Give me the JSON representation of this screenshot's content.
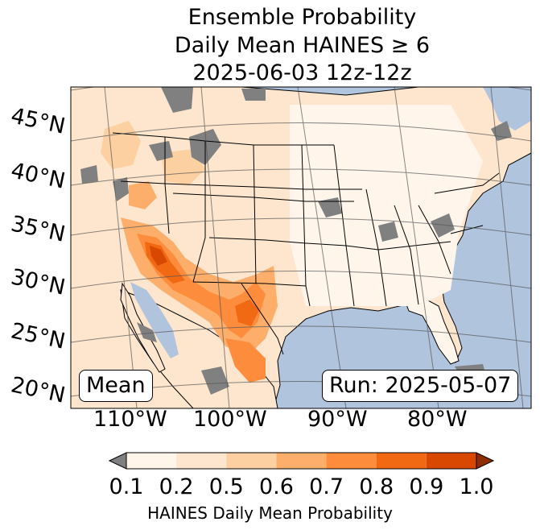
{
  "title": {
    "line1": "Ensemble Probability",
    "line2": "Daily Mean HAINES ≥ 6",
    "line3": "2025-06-03 12z-12z"
  },
  "panel_label": "Mean",
  "run_label": "Run: 2025-05-07",
  "lat_labels": [
    "45°N",
    "40°N",
    "35°N",
    "30°N",
    "25°N",
    "20°N"
  ],
  "lon_labels": [
    "110°W",
    "100°W",
    "90°W",
    "80°W"
  ],
  "colorbar": {
    "label": "HAINES Daily Mean Probability",
    "ticks": [
      "0.1",
      "0.2",
      "0.5",
      "0.6",
      "0.7",
      "0.8",
      "0.9",
      "1.0"
    ],
    "colors": [
      "#fff5eb",
      "#fee6ce",
      "#fdd0a2",
      "#fdae6b",
      "#fd8d3c",
      "#f16913",
      "#d94801"
    ],
    "under_color": "#808080",
    "over_color": "#8c2d04"
  },
  "colors": {
    "ocean": "#b0c4de",
    "land_low": "#fff5eb",
    "missing": "#808080"
  }
}
